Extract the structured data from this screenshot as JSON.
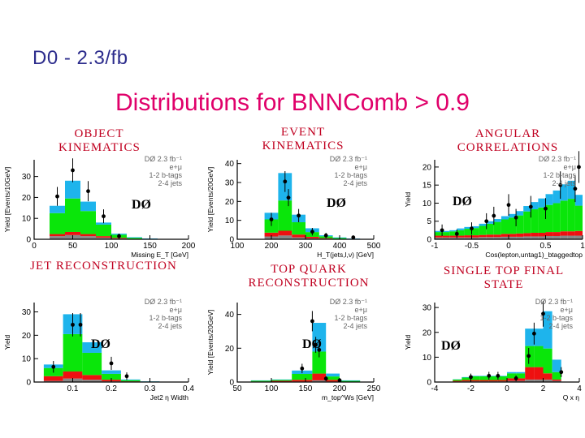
{
  "slide_title": "D0 - 2.3/fb",
  "main_title": "Distributions for BNNComb > 0.9",
  "colors": {
    "signal": "#1eb4ec",
    "wjets": "#0ae60a",
    "ttbar": "#ee1010",
    "other": "#888888",
    "heading": "#c00020",
    "title": "#e0006a"
  },
  "chart_data": [
    {
      "type": "bar",
      "heading": "OBJECT KINEMATICS",
      "xlabel": "Missing E_T [GeV]",
      "ylabel": "Yield [Events/10GeV]",
      "xlim": [
        0,
        200
      ],
      "ylim": [
        0,
        38
      ],
      "xticks": [
        0,
        50,
        100,
        150,
        200
      ],
      "xtick_labels": [
        "0",
        "50",
        "100",
        "150",
        "200"
      ],
      "yticks": [
        0,
        10,
        20,
        30
      ],
      "ytick_labels": [
        "0",
        "10",
        "20",
        "30"
      ],
      "bin_edges": [
        20,
        40,
        60,
        80,
        100,
        120,
        140,
        160,
        180,
        200
      ],
      "stack": {
        "other": [
          1.5,
          2,
          1.5,
          0.8,
          0.4,
          0.1,
          0,
          0,
          0
        ],
        "ttbar": [
          1,
          1.5,
          1,
          0.7,
          0.3,
          0.1,
          0,
          0,
          0
        ],
        "wjets": [
          10,
          16,
          11,
          5.5,
          1.5,
          0.5,
          0.2,
          0,
          0
        ],
        "signal": [
          3.5,
          8.5,
          4.5,
          1,
          0.5,
          0.3,
          0.2,
          0,
          0
        ]
      },
      "points": {
        "x": [
          30,
          50,
          70,
          90,
          110
        ],
        "y": [
          20.5,
          33,
          23,
          11,
          1.5
        ],
        "err": [
          4.5,
          5.7,
          4.8,
          3.3,
          1.2
        ]
      },
      "legend": {
        "lumi": "DØ  2.3 fb⁻¹",
        "channel": "e+μ",
        "btags": "1-2 b-tags",
        "jets": "2-4 jets"
      },
      "logo": "DØ"
    },
    {
      "type": "bar",
      "heading": "EVENT KINEMATICS",
      "xlabel": "H_T(jets,l,ν) [GeV]",
      "ylabel": "Yield [Events/20GeV]",
      "xlim": [
        100,
        500
      ],
      "ylim": [
        0,
        42
      ],
      "xticks": [
        100,
        200,
        300,
        400,
        500
      ],
      "xtick_labels": [
        "100",
        "200",
        "300",
        "400",
        "500"
      ],
      "yticks": [
        0,
        10,
        20,
        30,
        40
      ],
      "ytick_labels": [
        "0",
        "10",
        "20",
        "30",
        "40"
      ],
      "bin_edges": [
        180,
        220,
        260,
        300,
        340,
        380,
        420,
        460,
        500
      ],
      "stack": {
        "other": [
          1.5,
          2,
          1,
          0.5,
          0.3,
          0.1,
          0,
          0
        ],
        "ttbar": [
          2,
          2.5,
          1.5,
          0.8,
          0.3,
          0.1,
          0,
          0
        ],
        "wjets": [
          7,
          16,
          6.5,
          2.5,
          1,
          0.5,
          0.2,
          0
        ],
        "signal": [
          3.5,
          14.5,
          4,
          2,
          0.5,
          0.3,
          0.2,
          0
        ]
      },
      "points": {
        "x": [
          200,
          240,
          250,
          280,
          320,
          360,
          440
        ],
        "y": [
          10.5,
          30.5,
          22,
          12.5,
          4,
          2,
          1
        ],
        "err": [
          3.5,
          5.5,
          4.5,
          3.5,
          2,
          1.4,
          1
        ]
      },
      "legend": {
        "lumi": "DØ  2.3 fb⁻¹",
        "channel": "e+μ",
        "btags": "1-2 b-tags",
        "jets": "2-4 jets"
      },
      "logo": "DØ"
    },
    {
      "type": "bar",
      "heading": "ANGULAR CORRELATIONS",
      "xlabel": "Cos(lepton,untag1)_btaggedtop",
      "ylabel": "Yield",
      "xlim": [
        -1,
        1
      ],
      "ylim": [
        0,
        22
      ],
      "xticks": [
        -1,
        -0.5,
        0,
        0.5,
        1
      ],
      "xtick_labels": [
        "-1",
        "-0.5",
        "0",
        "0.5",
        "1"
      ],
      "yticks": [
        0,
        5,
        10,
        15,
        20
      ],
      "ytick_labels": [
        "0",
        "5",
        "10",
        "15",
        "20"
      ],
      "bin_edges": [
        -1,
        -0.9,
        -0.8,
        -0.7,
        -0.6,
        -0.5,
        -0.4,
        -0.3,
        -0.2,
        -0.1,
        0,
        0.1,
        0.2,
        0.3,
        0.4,
        0.5,
        0.6,
        0.7,
        0.8,
        0.9,
        1
      ],
      "stack": {
        "other": [
          0.5,
          0.5,
          0.5,
          0.5,
          0.5,
          0.5,
          0.6,
          0.6,
          0.6,
          0.7,
          0.7,
          0.7,
          0.8,
          0.8,
          0.8,
          0.9,
          0.9,
          1,
          1,
          1
        ],
        "ttbar": [
          0.5,
          0.5,
          0.5,
          0.5,
          0.6,
          0.6,
          0.6,
          0.7,
          0.7,
          0.8,
          0.8,
          0.9,
          0.9,
          1,
          1,
          1.1,
          1.1,
          1.2,
          1.2,
          1.3
        ],
        "wjets": [
          1,
          1,
          1.2,
          1.5,
          1.8,
          2,
          2.5,
          3,
          3.5,
          4,
          4.5,
          5,
          6,
          6.5,
          7,
          7.5,
          8,
          8.5,
          9,
          7
        ],
        "signal": [
          0.3,
          0.3,
          0.3,
          0.5,
          0.5,
          0.5,
          0.6,
          0.7,
          0.8,
          0.9,
          1,
          1.2,
          1.5,
          2,
          2.5,
          3,
          3.5,
          4.5,
          5,
          3
        ]
      },
      "points": {
        "x": [
          -0.9,
          -0.7,
          -0.5,
          -0.3,
          -0.2,
          0,
          0.1,
          0.3,
          0.5,
          0.7,
          0.9,
          0.95
        ],
        "y": [
          2.5,
          1.5,
          3,
          5,
          6.5,
          9.5,
          6,
          9,
          8.5,
          15,
          14,
          20
        ],
        "err": [
          1.6,
          1.2,
          1.7,
          2.2,
          2.5,
          3,
          2.4,
          3,
          2.9,
          3.8,
          3.7,
          4.4
        ]
      },
      "legend": {
        "lumi": "DØ  2.3 fb⁻¹",
        "channel": "e+μ",
        "btags": "1-2 b-tags",
        "jets": "2-4 jets"
      },
      "logo": "DØ"
    },
    {
      "type": "bar",
      "heading": "JET RECONSTRUCTION",
      "xlabel": "Jet2 η Width",
      "ylabel": "Yield",
      "xlim": [
        0,
        0.4
      ],
      "ylim": [
        0,
        34
      ],
      "xticks": [
        0.1,
        0.2,
        0.3,
        0.4
      ],
      "xtick_labels": [
        "0.1",
        "0.2",
        "0.3",
        "0.4"
      ],
      "yticks": [
        0,
        10,
        20,
        30
      ],
      "ytick_labels": [
        "0",
        "10",
        "20",
        "30"
      ],
      "bin_edges": [
        0.025,
        0.075,
        0.125,
        0.175,
        0.225,
        0.275,
        0.325,
        0.375,
        0.4
      ],
      "stack": {
        "other": [
          0.5,
          1.5,
          1,
          0.3,
          0.1,
          0,
          0,
          0
        ],
        "ttbar": [
          2,
          3,
          2,
          0.7,
          0.2,
          0,
          0,
          0
        ],
        "wjets": [
          3.5,
          16,
          9.5,
          2.5,
          0.5,
          0.2,
          0.1,
          0
        ],
        "signal": [
          1.5,
          8.5,
          4.5,
          1.5,
          0.3,
          0.1,
          0,
          0
        ]
      },
      "points": {
        "x": [
          0.05,
          0.1,
          0.12,
          0.2,
          0.24
        ],
        "y": [
          6.5,
          24.5,
          24.5,
          8,
          2.5
        ],
        "err": [
          2.5,
          5,
          5,
          2.8,
          1.6
        ]
      },
      "legend": {
        "lumi": "DØ  2.3 fb⁻¹",
        "channel": "e+μ",
        "btags": "1-2 b-tags",
        "jets": "2-4 jets"
      },
      "logo": "DØ"
    },
    {
      "type": "bar",
      "heading": "TOP QUARK RECONSTRUCTION",
      "xlabel": "m_top^Ws [GeV]",
      "ylabel": "Yield [Events/20GeV]",
      "xlim": [
        50,
        250
      ],
      "ylim": [
        0,
        47
      ],
      "xticks": [
        50,
        100,
        150,
        200,
        250
      ],
      "xtick_labels": [
        "50",
        "100",
        "150",
        "200",
        "250"
      ],
      "yticks": [
        0,
        20,
        40
      ],
      "ytick_labels": [
        "0",
        "20",
        "40"
      ],
      "bin_edges": [
        70,
        100,
        130,
        160,
        180,
        200,
        230,
        250
      ],
      "stack": {
        "other": [
          0,
          0.2,
          0.3,
          1,
          0.3,
          0,
          0
        ],
        "ttbar": [
          0.3,
          0.5,
          1,
          4,
          1,
          0.2,
          0
        ],
        "wjets": [
          0.5,
          0.5,
          3.5,
          13,
          2,
          0.5,
          0
        ],
        "signal": [
          0.2,
          0.3,
          2,
          17,
          1.7,
          0.3,
          0
        ]
      },
      "points": {
        "x": [
          145,
          160,
          165,
          170,
          180,
          200
        ],
        "y": [
          8,
          36,
          22,
          19,
          2,
          1
        ],
        "err": [
          2.8,
          6,
          4.7,
          4.4,
          1.4,
          1
        ]
      },
      "legend": {
        "lumi": "DØ  2.3 fb⁻¹",
        "channel": "e+μ",
        "btags": "1-2 b-tags",
        "jets": "2-4 jets"
      },
      "logo": "DØ"
    },
    {
      "type": "bar",
      "heading": "SINGLE TOP FINAL STATE",
      "xlabel": "Q x η",
      "ylabel": "Yield",
      "xlim": [
        -4,
        4
      ],
      "ylim": [
        0,
        32
      ],
      "xticks": [
        -4,
        -2,
        0,
        2,
        4
      ],
      "xtick_labels": [
        "-4",
        "-2",
        "0",
        "2",
        "4"
      ],
      "yticks": [
        0,
        10,
        20,
        30
      ],
      "ytick_labels": [
        "0",
        "10",
        "20",
        "30"
      ],
      "bin_edges": [
        -3,
        -2.5,
        -2,
        -1.5,
        -1,
        -0.5,
        0,
        0.5,
        1,
        1.5,
        2,
        2.5,
        3
      ],
      "stack": {
        "other": [
          0.2,
          0.3,
          0.3,
          0.3,
          0.3,
          0.3,
          0.5,
          0.5,
          1,
          1,
          1,
          0.5
        ],
        "ttbar": [
          0.3,
          0.5,
          0.5,
          0.5,
          0.5,
          0.5,
          1,
          1,
          5,
          5,
          2.5,
          0.5
        ],
        "wjets": [
          0.5,
          1,
          1.5,
          1.5,
          1.5,
          1.5,
          2,
          2,
          8.5,
          8.5,
          10,
          3
        ],
        "signal": [
          0.1,
          0.2,
          0.2,
          0.2,
          0.2,
          0.2,
          0.5,
          0.5,
          7,
          7,
          15,
          5
        ]
      },
      "points": {
        "x": [
          -2,
          -1,
          -0.5,
          0.5,
          1.2,
          1.5,
          2,
          3
        ],
        "y": [
          2,
          2.5,
          2.5,
          1.5,
          10.5,
          19.5,
          27.5,
          4
        ],
        "err": [
          1.4,
          1.6,
          1.6,
          1.2,
          3.2,
          4.4,
          5.2,
          2
        ]
      },
      "legend": {
        "lumi": "DØ  2.3 fb⁻¹",
        "channel": "e+μ",
        "btags": "1-2 b-tags",
        "jets": "2-4 jets"
      },
      "logo": "DØ"
    }
  ]
}
